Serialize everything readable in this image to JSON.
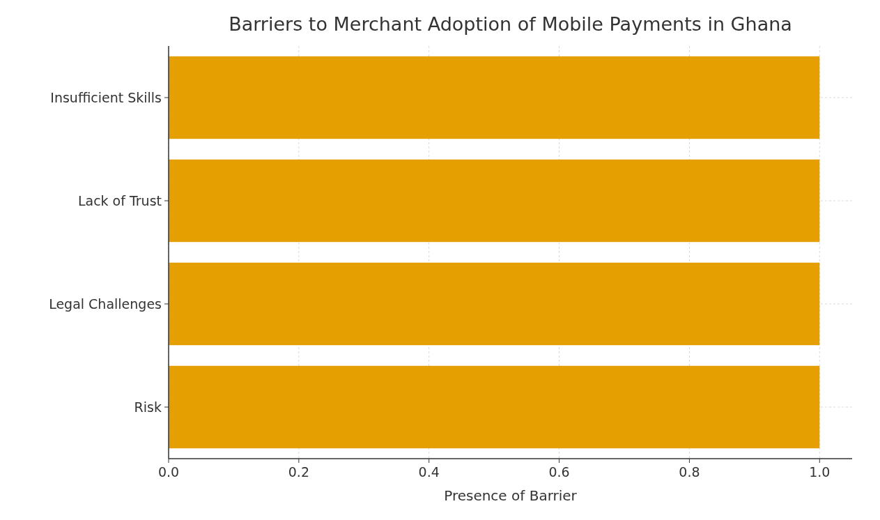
{
  "chart_data": {
    "type": "bar",
    "orientation": "horizontal",
    "title": "Barriers to Merchant Adoption of Mobile Payments in Ghana",
    "xlabel": "Presence of Barrier",
    "categories": [
      "Insufficient Skills",
      "Lack of Trust",
      "Legal Challenges",
      "Risk"
    ],
    "values": [
      1,
      1,
      1,
      1
    ],
    "color": "#e69f00",
    "xlim": [
      0,
      1.05
    ],
    "xticks": [
      {
        "value": 0,
        "label": "0.0"
      },
      {
        "value": 0.2,
        "label": "0.2"
      },
      {
        "value": 0.4,
        "label": "0.4"
      },
      {
        "value": 0.6,
        "label": "0.6"
      },
      {
        "value": 0.8,
        "label": "0.8"
      },
      {
        "value": 1,
        "label": "1.0"
      }
    ],
    "grid": true
  }
}
